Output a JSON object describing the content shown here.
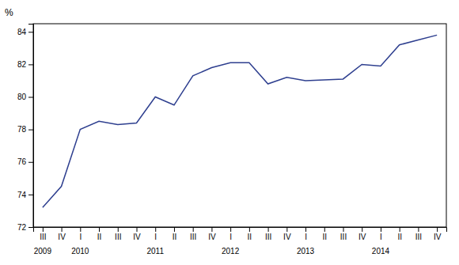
{
  "chart_data": {
    "type": "line",
    "ylabel": "%",
    "categories": [
      "III",
      "IV",
      "I",
      "II",
      "III",
      "IV",
      "I",
      "II",
      "III",
      "IV",
      "I",
      "II",
      "III",
      "IV",
      "I",
      "II",
      "III",
      "IV",
      "I",
      "II",
      "III",
      "IV"
    ],
    "values": [
      73.2,
      74.5,
      78.0,
      78.5,
      78.3,
      78.4,
      80.0,
      79.5,
      81.3,
      81.8,
      82.1,
      82.1,
      80.8,
      81.2,
      81.0,
      81.05,
      81.1,
      82.0,
      81.9,
      83.2,
      83.5,
      83.8
    ],
    "color": "#2E3F8F",
    "ylim": [
      72,
      84.5
    ],
    "yticks": [
      72,
      74,
      76,
      78,
      80,
      82,
      84
    ],
    "grid": false,
    "annotations": [
      {
        "text": "2009",
        "category_index": 0
      },
      {
        "text": "2010",
        "category_index": 2
      },
      {
        "text": "2011",
        "category_index": 6
      },
      {
        "text": "2012",
        "category_index": 10
      },
      {
        "text": "2013",
        "category_index": 14
      },
      {
        "text": "2014",
        "category_index": 18
      }
    ]
  }
}
